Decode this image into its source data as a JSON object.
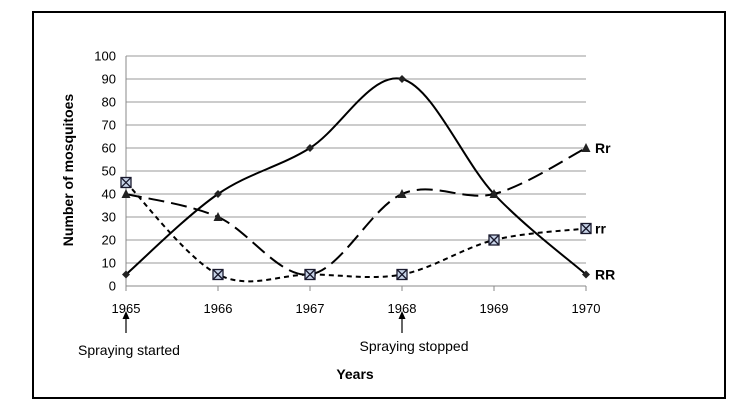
{
  "chart_data": {
    "type": "line",
    "x": [
      "1965",
      "1966",
      "1967",
      "1968",
      "1969",
      "1970"
    ],
    "xlabel": "Years",
    "ylabel": "Number of mosquitoes",
    "ylim": [
      0,
      100
    ],
    "ytick_step": 10,
    "grid": true,
    "series": [
      {
        "name": "RR",
        "values": [
          5,
          40,
          60,
          90,
          40,
          5
        ],
        "line": "solid",
        "marker": "diamond"
      },
      {
        "name": "Rr",
        "values": [
          40,
          30,
          5,
          40,
          40,
          60
        ],
        "line": "long-dash",
        "marker": "triangle"
      },
      {
        "name": "rr",
        "values": [
          45,
          5,
          5,
          5,
          20,
          25
        ],
        "line": "short-dash",
        "marker": "x-square"
      }
    ],
    "annotations": [
      {
        "text": "Spraying started",
        "x": "1965"
      },
      {
        "text": "Spraying stopped",
        "x": "1968"
      }
    ]
  }
}
